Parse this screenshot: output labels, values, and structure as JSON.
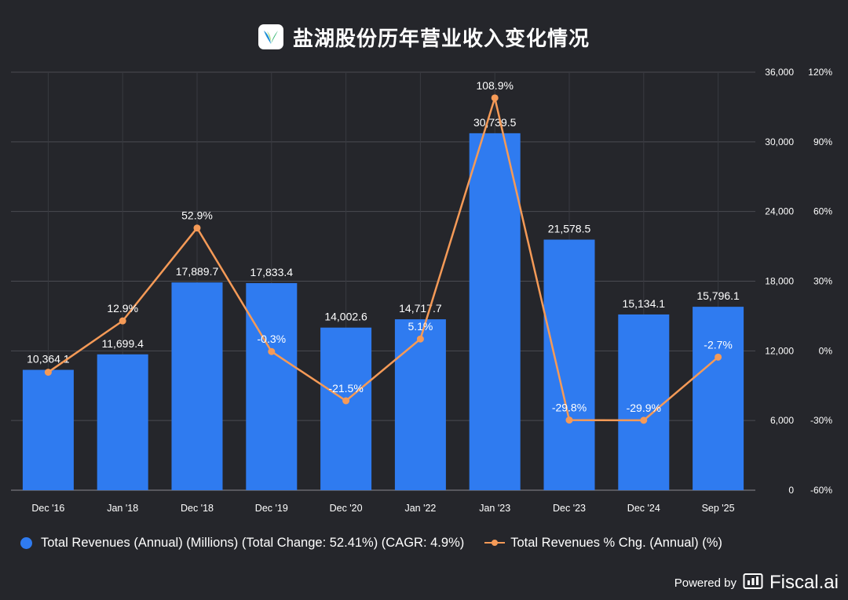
{
  "header": {
    "title": "盐湖股份历年营业收入变化情况",
    "logo_icon": "salt-lake-logo-icon"
  },
  "colors": {
    "background": "#25262b",
    "bar": "#2f7bf0",
    "line": "#f59a57",
    "grid": "#4a4b52",
    "text": "#ffffff"
  },
  "chart_data": {
    "type": "bar",
    "categories": [
      "Dec '16",
      "Jan '18",
      "Dec '18",
      "Dec '19",
      "Dec '20",
      "Jan '22",
      "Jan '23",
      "Dec '23",
      "Dec '24",
      "Sep '25"
    ],
    "series": [
      {
        "name": "Total Revenues (Annual) (Millions) (Total Change: 52.41%) (CAGR: 4.9%)",
        "type": "bar",
        "axis": "left",
        "values": [
          10364.1,
          11699.4,
          17889.7,
          17833.4,
          14002.6,
          14717.7,
          30739.5,
          21578.5,
          15134.1,
          15796.1
        ],
        "labels": [
          "10,364.1",
          "11,699.4",
          "17,889.7",
          "17,833.4",
          "14,002.6",
          "14,717.7",
          "30,739.5",
          "21,578.5",
          "15,134.1",
          "15,796.1"
        ]
      },
      {
        "name": "Total Revenues % Chg. (Annual) (%)",
        "type": "line",
        "axis": "right",
        "values": [
          -9.2,
          12.9,
          52.9,
          -0.3,
          -21.5,
          5.1,
          108.9,
          -29.8,
          -29.9,
          -2.7
        ],
        "labels": [
          "",
          "12.9%",
          "52.9%",
          "-0.3%",
          "-21.5%",
          "5.1%",
          "108.9%",
          "-29.8%",
          "-29.9%",
          "-2.7%"
        ]
      }
    ],
    "y_left": {
      "min": 0,
      "max": 36000,
      "ticks": [
        "0",
        "6,000",
        "12,000",
        "18,000",
        "24,000",
        "30,000",
        "36,000"
      ]
    },
    "y_right": {
      "min": -60,
      "max": 120,
      "ticks": [
        "-60%",
        "-30%",
        "0%",
        "30%",
        "60%",
        "90%",
        "120%"
      ]
    },
    "grid": true,
    "legend_position": "bottom"
  },
  "legend": {
    "bar_label": "Total Revenues (Annual) (Millions) (Total Change: 52.41%) (CAGR: 4.9%)",
    "line_label": "Total Revenues % Chg. (Annual) (%)"
  },
  "footer": {
    "powered_by": "Powered by",
    "brand": "Fiscal.ai"
  }
}
